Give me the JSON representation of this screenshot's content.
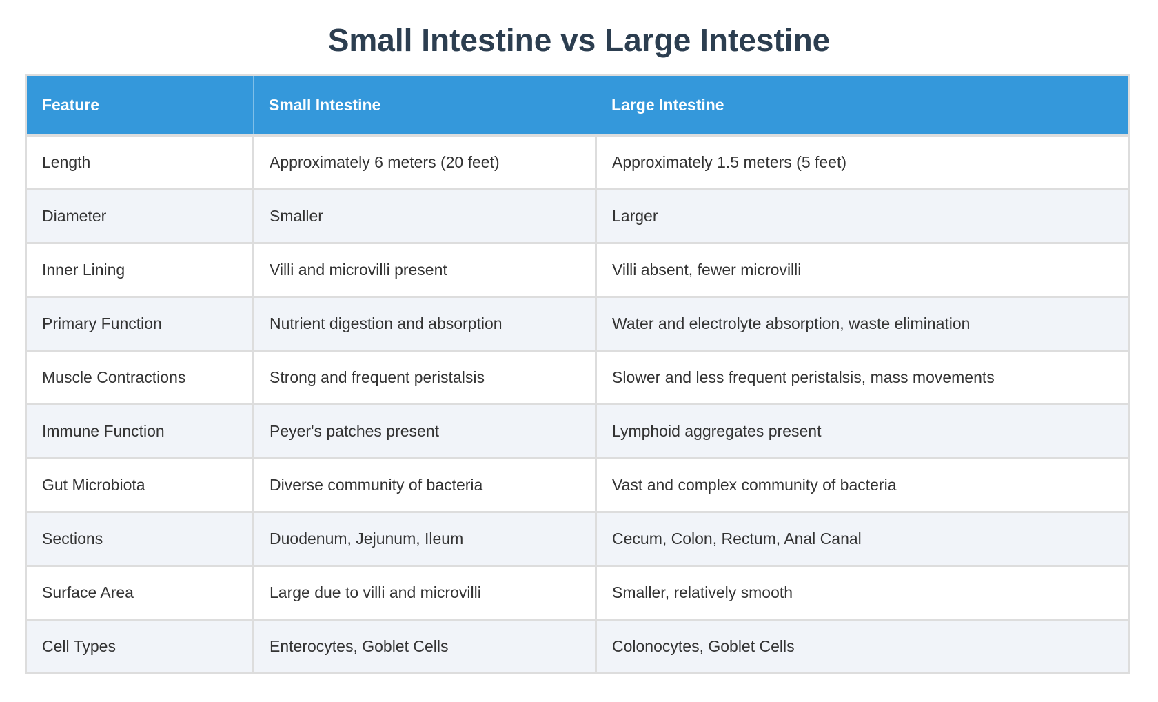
{
  "title": "Small Intestine vs Large Intestine",
  "colors": {
    "header_bg": "#3498db",
    "title": "#2c3e50",
    "alt_row": "#f1f4f9"
  },
  "table": {
    "headers": [
      "Feature",
      "Small Intestine",
      "Large Intestine"
    ],
    "rows": [
      [
        "Length",
        "Approximately 6 meters (20 feet)",
        "Approximately 1.5 meters (5 feet)"
      ],
      [
        "Diameter",
        "Smaller",
        "Larger"
      ],
      [
        "Inner Lining",
        "Villi and microvilli present",
        "Villi absent, fewer microvilli"
      ],
      [
        "Primary Function",
        "Nutrient digestion and absorption",
        "Water and electrolyte absorption, waste elimination"
      ],
      [
        "Muscle Contractions",
        "Strong and frequent peristalsis",
        "Slower and less frequent peristalsis, mass movements"
      ],
      [
        "Immune Function",
        "Peyer's patches present",
        "Lymphoid aggregates present"
      ],
      [
        "Gut Microbiota",
        "Diverse community of bacteria",
        "Vast and complex community of bacteria"
      ],
      [
        "Sections",
        "Duodenum, Jejunum, Ileum",
        "Cecum, Colon, Rectum, Anal Canal"
      ],
      [
        "Surface Area",
        "Large due to villi and microvilli",
        "Smaller, relatively smooth"
      ],
      [
        "Cell Types",
        "Enterocytes, Goblet Cells",
        "Colonocytes, Goblet Cells"
      ]
    ]
  }
}
